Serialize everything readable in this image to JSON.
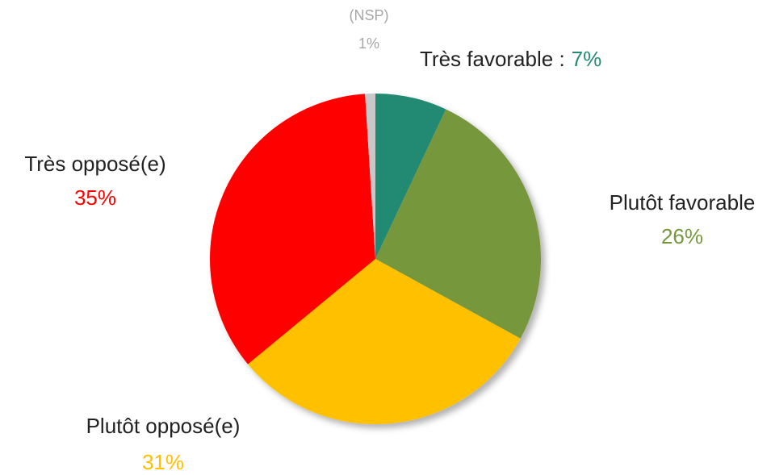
{
  "chart_data": {
    "type": "pie",
    "categories": [
      "Très favorable :",
      "Plutôt favorable",
      "Plutôt opposé(e)",
      "Très opposé(e)",
      "(NSP)"
    ],
    "values": [
      7,
      26,
      31,
      35,
      1
    ],
    "value_labels": [
      "7%",
      "26%",
      "31%",
      "35%",
      "1%"
    ],
    "colors": [
      "#238a73",
      "#77973d",
      "#ffc000",
      "#ff0000",
      "#c8c8c8"
    ]
  }
}
